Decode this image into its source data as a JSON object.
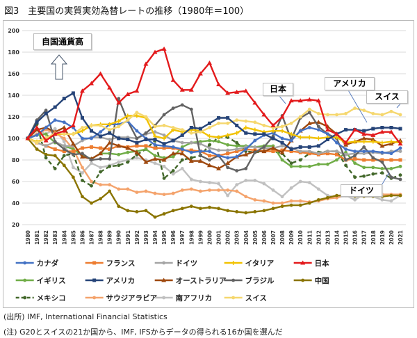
{
  "title": "図3　主要国の実質実効為替レートの推移（1980年＝100）",
  "source_note": "(出所) IMF, International Financial Statistics",
  "footnote": "(注) G20とスイスの21か国から、IMF, IFSからデータの得られる16か国を選んだ",
  "annotations": {
    "appreciation": "自国通貨高",
    "japan": "日本",
    "usa": "アメリカ",
    "switzerland": "スイス",
    "germany": "ドイツ"
  },
  "chart_data": {
    "type": "line",
    "title": "図3　主要国の実質実効為替レートの推移（1980年＝100）",
    "xlabel": "",
    "ylabel": "",
    "ylim": [
      20,
      200
    ],
    "yticks": [
      20,
      40,
      60,
      80,
      100,
      120,
      140,
      160,
      180,
      200
    ],
    "grid": true,
    "legend": "bottom",
    "x": [
      1980,
      1981,
      1982,
      1983,
      1984,
      1985,
      1986,
      1987,
      1988,
      1989,
      1990,
      1991,
      1992,
      1993,
      1994,
      1995,
      1996,
      1997,
      1998,
      1999,
      2000,
      2001,
      2002,
      2003,
      2004,
      2005,
      2006,
      2007,
      2008,
      2009,
      2010,
      2011,
      2012,
      2013,
      2014,
      2015,
      2016,
      2017,
      2018,
      2019,
      2020,
      2021
    ],
    "series": [
      {
        "name": "カナダ",
        "color": "#4472c4",
        "marker": "circle",
        "values": [
          100,
          103,
          110,
          117,
          115,
          110,
          100,
          100,
          106,
          113,
          113,
          116,
          107,
          100,
          94,
          93,
          92,
          90,
          87,
          88,
          88,
          84,
          82,
          83,
          90,
          98,
          103,
          105,
          100,
          98,
          107,
          110,
          108,
          104,
          96,
          90,
          88,
          88,
          88,
          87,
          86,
          91
        ]
      },
      {
        "name": "フランス",
        "color": "#ed7d31",
        "marker": "square",
        "values": [
          100,
          96,
          93,
          90,
          88,
          88,
          91,
          92,
          91,
          90,
          93,
          92,
          93,
          93,
          91,
          91,
          91,
          89,
          89,
          88,
          84,
          84,
          86,
          88,
          90,
          89,
          88,
          88,
          89,
          88,
          87,
          86,
          85,
          86,
          85,
          80,
          81,
          80,
          80,
          80,
          80,
          80
        ]
      },
      {
        "name": "ドイツ",
        "color": "#a5a5a5",
        "marker": "circle",
        "values": [
          100,
          96,
          93,
          97,
          93,
          93,
          98,
          101,
          101,
          99,
          101,
          101,
          100,
          104,
          106,
          103,
          98,
          96,
          96,
          95,
          91,
          89,
          89,
          90,
          92,
          92,
          91,
          91,
          93,
          91,
          88,
          88,
          86,
          88,
          88,
          85,
          86,
          86,
          87,
          86,
          88,
          88
        ]
      },
      {
        "name": "イタリア",
        "color": "#f2c200",
        "marker": "plus",
        "values": [
          100,
          97,
          100,
          104,
          104,
          104,
          107,
          112,
          113,
          113,
          116,
          121,
          121,
          119,
          102,
          100,
          108,
          106,
          108,
          107,
          102,
          101,
          103,
          105,
          110,
          108,
          106,
          107,
          107,
          104,
          101,
          101,
          100,
          101,
          101,
          96,
          97,
          97,
          97,
          96,
          97,
          96
        ]
      },
      {
        "name": "日本",
        "color": "#e31a1c",
        "marker": "triangle",
        "values": [
          100,
          110,
          98,
          104,
          107,
          112,
          144,
          151,
          160,
          147,
          133,
          141,
          144,
          169,
          180,
          183,
          154,
          145,
          145,
          160,
          170,
          150,
          142,
          143,
          144,
          133,
          122,
          112,
          120,
          135,
          135,
          136,
          135,
          108,
          104,
          96,
          108,
          104,
          103,
          106,
          106,
          95
        ]
      },
      {
        "name": "イギリス",
        "color": "#70ad47",
        "marker": "circle",
        "values": [
          100,
          103,
          104,
          96,
          93,
          90,
          84,
          81,
          86,
          86,
          85,
          87,
          88,
          90,
          84,
          82,
          83,
          92,
          96,
          97,
          98,
          97,
          94,
          93,
          93,
          92,
          93,
          93,
          80,
          74,
          74,
          74,
          76,
          76,
          80,
          87,
          77,
          73,
          73,
          72,
          72,
          74
        ]
      },
      {
        "name": "アメリカ",
        "color": "#264478",
        "marker": "square",
        "values": [
          100,
          115,
          123,
          129,
          137,
          142,
          119,
          107,
          102,
          105,
          100,
          99,
          96,
          99,
          99,
          95,
          98,
          103,
          110,
          109,
          114,
          119,
          119,
          112,
          105,
          104,
          104,
          100,
          96,
          90,
          92,
          92,
          93,
          99,
          104,
          108,
          108,
          107,
          109,
          110,
          110,
          109
        ]
      },
      {
        "name": "オーストラリア",
        "color": "#9e480e",
        "marker": "triangle",
        "values": [
          100,
          108,
          110,
          106,
          110,
          95,
          83,
          81,
          86,
          96,
          93,
          91,
          87,
          78,
          81,
          80,
          86,
          86,
          79,
          79,
          75,
          72,
          77,
          83,
          85,
          88,
          88,
          91,
          87,
          98,
          107,
          114,
          115,
          111,
          104,
          94,
          97,
          100,
          99,
          93,
          95,
          98
        ]
      },
      {
        "name": "ブラジル",
        "color": "#636363",
        "marker": "circle",
        "values": [
          100,
          117,
          126,
          97,
          90,
          85,
          86,
          80,
          81,
          81,
          137,
          116,
          100,
          105,
          112,
          122,
          128,
          131,
          127,
          84,
          80,
          84,
          73,
          70,
          72,
          87,
          92,
          102,
          121,
          99,
          119,
          124,
          111,
          104,
          100,
          80,
          84,
          92,
          82,
          78,
          64,
          62
        ]
      },
      {
        "name": "中国",
        "color": "#8a7400",
        "marker": "circle",
        "values": [
          100,
          90,
          85,
          84,
          75,
          64,
          46,
          40,
          44,
          51,
          37,
          33,
          32,
          33,
          27,
          30,
          33,
          35,
          37,
          35,
          36,
          35,
          33,
          32,
          31,
          32,
          33,
          35,
          37,
          38,
          38,
          40,
          43,
          45,
          47,
          47,
          46,
          46,
          46,
          46,
          47,
          47
        ]
      },
      {
        "name": "メキシコ",
        "color": "#43682b",
        "marker": "circle",
        "dashed": true,
        "values": [
          100,
          113,
          82,
          72,
          84,
          86,
          61,
          56,
          69,
          74,
          75,
          78,
          85,
          90,
          98,
          63,
          70,
          80,
          82,
          84,
          94,
          101,
          101,
          96,
          88,
          87,
          88,
          88,
          86,
          77,
          80,
          86,
          87,
          88,
          88,
          75,
          64,
          65,
          67,
          68,
          63,
          66
        ]
      },
      {
        "name": "サウジアラビア",
        "color": "#f4a36c",
        "marker": "circle",
        "values": [
          100,
          104,
          108,
          105,
          100,
          90,
          73,
          60,
          57,
          57,
          53,
          53,
          50,
          51,
          49,
          48,
          49,
          52,
          53,
          51,
          52,
          52,
          52,
          51,
          46,
          43,
          42,
          40,
          40,
          42,
          42,
          41,
          42,
          44,
          45,
          48,
          48,
          47,
          47,
          48,
          48,
          48
        ]
      },
      {
        "name": "南アフリカ",
        "color": "#c0c0c0",
        "marker": "circle",
        "values": [
          100,
          108,
          104,
          109,
          97,
          73,
          68,
          77,
          73,
          75,
          78,
          80,
          82,
          80,
          77,
          74,
          67,
          72,
          62,
          60,
          59,
          58,
          47,
          57,
          61,
          61,
          58,
          52,
          46,
          54,
          60,
          59,
          53,
          47,
          45,
          47,
          43,
          48,
          46,
          43,
          42,
          47
        ]
      },
      {
        "name": "スイス",
        "color": "#f5d76e",
        "marker": "circle",
        "values": [
          100,
          96,
          100,
          105,
          104,
          104,
          110,
          112,
          112,
          108,
          111,
          117,
          124,
          120,
          111,
          112,
          110,
          108,
          105,
          106,
          110,
          114,
          114,
          117,
          116,
          115,
          112,
          110,
          111,
          114,
          120,
          127,
          123,
          122,
          122,
          123,
          128,
          126,
          123,
          122,
          125,
          122
        ]
      }
    ]
  }
}
